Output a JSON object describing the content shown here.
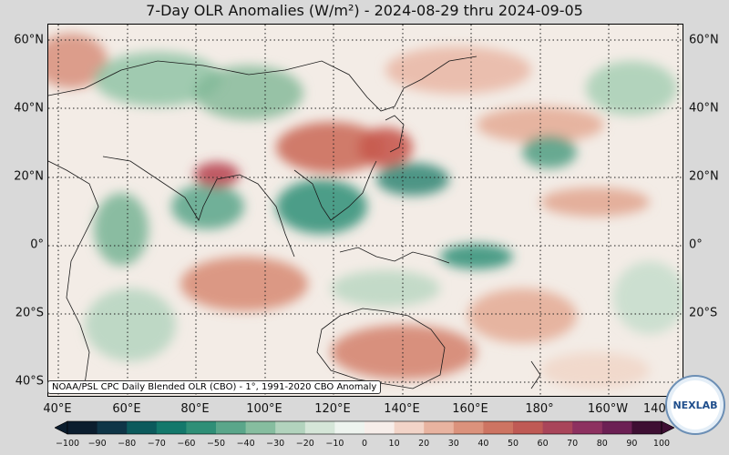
{
  "title": "7-Day OLR Anomalies (W/m²) - 2024-08-29 thru 2024-09-05",
  "source": "NOAA/PSL CPC Daily Blended OLR (CBO) - 1°, 1991-2020 CBO Anomaly",
  "logo_text": "NEXLAB",
  "lat_labels": [
    "60°N",
    "40°N",
    "20°N",
    "0°",
    "20°S",
    "40°S"
  ],
  "lon_labels": [
    "40°E",
    "60°E",
    "80°E",
    "100°E",
    "120°E",
    "140°E",
    "160°E",
    "180°",
    "160°W",
    "140°W"
  ],
  "colorbar": {
    "ticks": [
      "−100",
      "−90",
      "−80",
      "−70",
      "−60",
      "−50",
      "−40",
      "−30",
      "−20",
      "−10",
      "0",
      "10",
      "20",
      "30",
      "40",
      "50",
      "60",
      "70",
      "80",
      "90",
      "100"
    ],
    "colors": [
      "#0b1d2e",
      "#0f3547",
      "#0c5a5c",
      "#13786b",
      "#2f8f77",
      "#5aa68a",
      "#86bd9f",
      "#b2d3bd",
      "#d5e6d8",
      "#eef4ef",
      "#f7eeea",
      "#f2d4c8",
      "#e8b3a0",
      "#db927c",
      "#cd7462",
      "#bf5a55",
      "#a9455a",
      "#8d3160",
      "#6c2054",
      "#3e0f33"
    ]
  },
  "colors": {
    "negative": "#2f8f77",
    "positive": "#cd7462",
    "neutral": "#f3ece6",
    "coast": "#1a1a1a",
    "grid": "#222222"
  }
}
